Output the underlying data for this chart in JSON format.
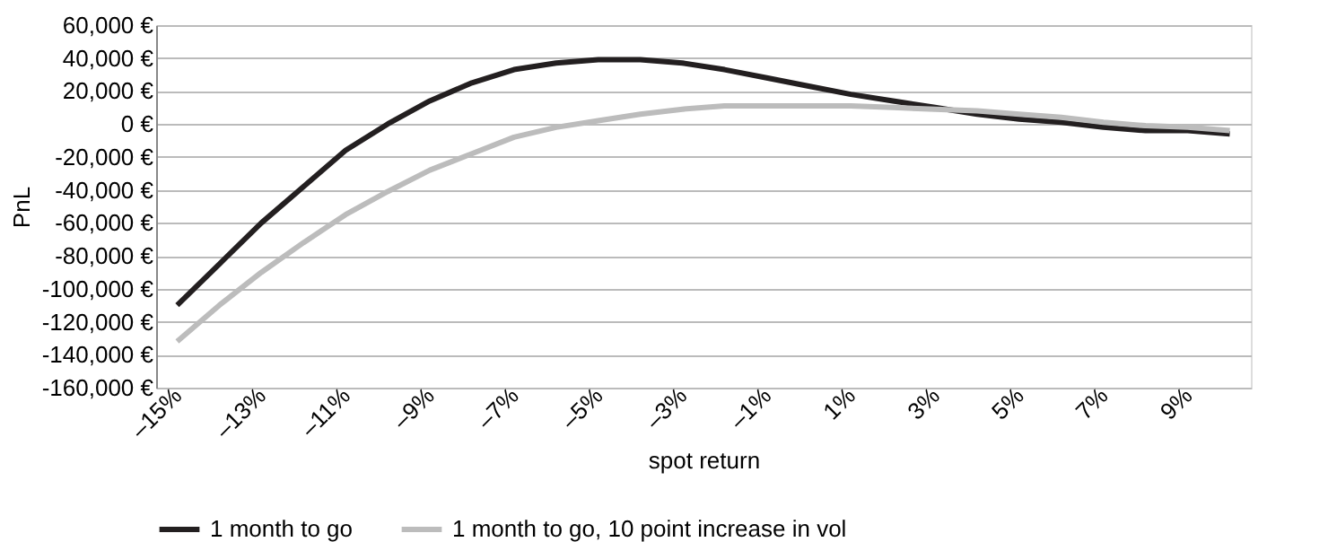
{
  "chart_data": {
    "type": "line",
    "xlabel": "spot return",
    "ylabel": "PnL",
    "x": [
      -15,
      -14,
      -13,
      -12,
      -11,
      -10,
      -9,
      -8,
      -7,
      -6,
      -5,
      -4,
      -3,
      -2,
      -1,
      0,
      1,
      2,
      3,
      4,
      5,
      6,
      7,
      8,
      9,
      10
    ],
    "series": [
      {
        "name": "1 month to go",
        "color": "#231f20",
        "values": [
          -110000,
          -85000,
          -60000,
          -38000,
          -16000,
          0,
          14000,
          25000,
          33000,
          37000,
          39000,
          39000,
          37000,
          33000,
          28000,
          23000,
          18000,
          14000,
          10000,
          6000,
          3000,
          1000,
          -2000,
          -4000,
          -4000,
          -6000
        ]
      },
      {
        "name": "1 month to go, 10 point increase in vol",
        "color": "#bcbcbc",
        "values": [
          -132000,
          -110000,
          -90000,
          -72000,
          -55000,
          -41000,
          -28000,
          -18000,
          -8000,
          -2000,
          2000,
          6000,
          9000,
          11000,
          11000,
          11000,
          11000,
          10000,
          9000,
          8000,
          6000,
          4000,
          1000,
          -1000,
          -2000,
          -4000
        ]
      }
    ],
    "xlim": [
      -15.5,
      10.5
    ],
    "xticks": [
      {
        "value": -15,
        "label": "–15%"
      },
      {
        "value": -13,
        "label": "–13%"
      },
      {
        "value": -11,
        "label": "–11%"
      },
      {
        "value": -9,
        "label": "–9%"
      },
      {
        "value": -7,
        "label": "–7%"
      },
      {
        "value": -5,
        "label": "–5%"
      },
      {
        "value": -3,
        "label": "–3%"
      },
      {
        "value": -1,
        "label": "–1%"
      },
      {
        "value": 1,
        "label": "1%"
      },
      {
        "value": 3,
        "label": "3%"
      },
      {
        "value": 5,
        "label": "5%"
      },
      {
        "value": 7,
        "label": "7%"
      },
      {
        "value": 9,
        "label": "9%"
      }
    ],
    "ylim": [
      -160000,
      60000
    ],
    "yticks": [
      {
        "value": 60000,
        "label": "60,000 €"
      },
      {
        "value": 40000,
        "label": "40,000 €"
      },
      {
        "value": 20000,
        "label": "20,000 €"
      },
      {
        "value": 0,
        "label": "0 €"
      },
      {
        "value": -20000,
        "label": "-20,000 €"
      },
      {
        "value": -40000,
        "label": "-40,000 €"
      },
      {
        "value": -60000,
        "label": "-60,000 €"
      },
      {
        "value": -80000,
        "label": "-80,000 €"
      },
      {
        "value": -100000,
        "label": "-100,000 €"
      },
      {
        "value": -120000,
        "label": "-120,000 €"
      },
      {
        "value": -140000,
        "label": "-140,000 €"
      },
      {
        "value": -160000,
        "label": "-160,000 €"
      }
    ],
    "grid": "y",
    "legend": "bottom",
    "marker": "none",
    "line_style": "solid"
  }
}
